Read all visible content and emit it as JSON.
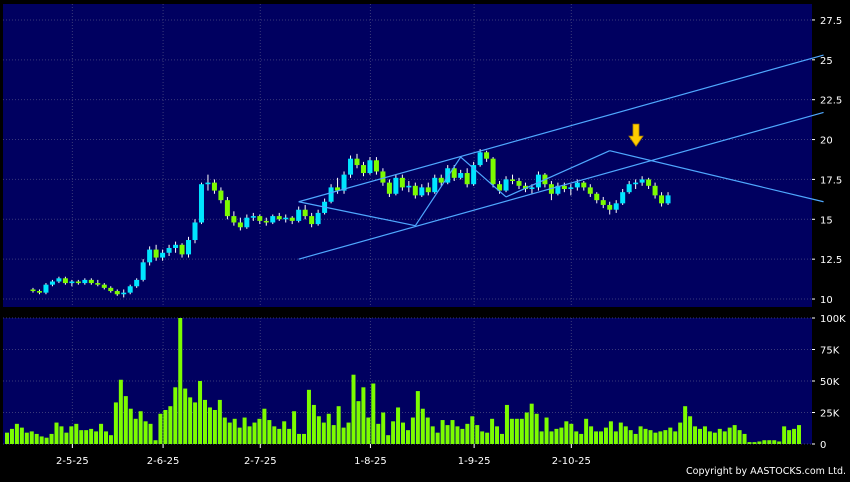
{
  "chart_data": [
    {
      "type": "candlestick",
      "title": "",
      "xlabel": "",
      "ylabel": "",
      "ylim": [
        9.5,
        28.5
      ],
      "y_ticks": [
        "10",
        "12.5",
        "15",
        "17.5",
        "20",
        "22.5",
        "25",
        "27.5"
      ],
      "y_tick_values": [
        10,
        12.5,
        15,
        17.5,
        20,
        22.5,
        25,
        27.5
      ],
      "x_tick_labels": [
        "2-5-25",
        "2-6-25",
        "2-7-25",
        "1-8-25",
        "1-9-25",
        "2-10-25"
      ],
      "x_tick_bar_index": [
        7,
        21,
        36,
        53,
        69,
        84
      ],
      "grid": true,
      "colors": {
        "up": "#00e5ff",
        "down": "#7cfc00",
        "wick": "#ffffff",
        "trendline": "#4fa8ff",
        "arrow": "#ffcc00",
        "background": "#000060"
      },
      "ohlc": [
        [
          10.6,
          10.7,
          10.4,
          10.5
        ],
        [
          10.5,
          10.6,
          10.3,
          10.4
        ],
        [
          10.4,
          11.0,
          10.3,
          10.9
        ],
        [
          10.9,
          11.2,
          10.8,
          11.1
        ],
        [
          11.1,
          11.4,
          11.0,
          11.3
        ],
        [
          11.3,
          11.4,
          10.9,
          11.0
        ],
        [
          11.0,
          11.2,
          10.8,
          11.1
        ],
        [
          11.1,
          11.2,
          10.9,
          11.0
        ],
        [
          11.0,
          11.3,
          10.9,
          11.2
        ],
        [
          11.2,
          11.3,
          10.9,
          11.0
        ],
        [
          11.0,
          11.2,
          10.8,
          10.9
        ],
        [
          10.9,
          11.0,
          10.6,
          10.7
        ],
        [
          10.7,
          10.8,
          10.4,
          10.5
        ],
        [
          10.5,
          10.6,
          10.2,
          10.3
        ],
        [
          10.3,
          10.6,
          10.1,
          10.4
        ],
        [
          10.4,
          10.9,
          10.3,
          10.8
        ],
        [
          10.8,
          11.3,
          10.7,
          11.2
        ],
        [
          11.2,
          12.5,
          11.1,
          12.3
        ],
        [
          12.3,
          13.3,
          12.1,
          13.1
        ],
        [
          13.1,
          13.4,
          12.4,
          12.6
        ],
        [
          12.6,
          13.1,
          12.4,
          12.9
        ],
        [
          12.9,
          13.4,
          12.7,
          13.2
        ],
        [
          13.2,
          13.6,
          12.9,
          13.4
        ],
        [
          13.4,
          13.5,
          12.6,
          12.8
        ],
        [
          12.8,
          13.9,
          12.6,
          13.7
        ],
        [
          13.7,
          15.0,
          13.5,
          14.8
        ],
        [
          14.8,
          17.3,
          14.7,
          17.2
        ],
        [
          17.2,
          17.8,
          16.8,
          17.3
        ],
        [
          17.3,
          17.5,
          16.6,
          16.8
        ],
        [
          16.8,
          17.0,
          16.0,
          16.2
        ],
        [
          16.2,
          16.4,
          15.0,
          15.2
        ],
        [
          15.2,
          15.5,
          14.6,
          14.8
        ],
        [
          14.8,
          15.1,
          14.3,
          14.5
        ],
        [
          14.5,
          15.3,
          14.4,
          15.1
        ],
        [
          15.1,
          15.4,
          14.9,
          15.2
        ],
        [
          15.2,
          15.3,
          14.7,
          14.9
        ],
        [
          14.9,
          15.1,
          14.6,
          14.8
        ],
        [
          14.8,
          15.3,
          14.7,
          15.2
        ],
        [
          15.2,
          15.4,
          14.9,
          15.0
        ],
        [
          15.0,
          15.3,
          14.8,
          15.1
        ],
        [
          15.1,
          15.2,
          14.7,
          14.9
        ],
        [
          14.9,
          15.8,
          14.8,
          15.6
        ],
        [
          15.6,
          15.9,
          15.0,
          15.2
        ],
        [
          15.2,
          15.4,
          14.5,
          14.7
        ],
        [
          14.7,
          15.6,
          14.6,
          15.4
        ],
        [
          15.4,
          16.3,
          15.3,
          16.1
        ],
        [
          16.1,
          17.2,
          16.0,
          17.0
        ],
        [
          17.0,
          17.6,
          16.6,
          16.8
        ],
        [
          16.8,
          18.0,
          16.6,
          17.8
        ],
        [
          17.8,
          19.0,
          17.6,
          18.8
        ],
        [
          18.8,
          19.1,
          18.2,
          18.4
        ],
        [
          18.4,
          18.6,
          17.7,
          17.9
        ],
        [
          17.9,
          18.9,
          17.8,
          18.7
        ],
        [
          18.7,
          18.9,
          17.8,
          18.0
        ],
        [
          18.0,
          18.2,
          17.1,
          17.3
        ],
        [
          17.3,
          17.5,
          16.4,
          16.6
        ],
        [
          16.6,
          17.8,
          16.5,
          17.6
        ],
        [
          17.6,
          17.8,
          16.8,
          17.0
        ],
        [
          17.0,
          17.4,
          16.7,
          17.1
        ],
        [
          17.1,
          17.3,
          16.3,
          16.5
        ],
        [
          16.5,
          17.2,
          16.4,
          17.0
        ],
        [
          17.0,
          17.3,
          16.5,
          16.7
        ],
        [
          16.7,
          17.8,
          16.6,
          17.6
        ],
        [
          17.6,
          17.8,
          17.1,
          17.3
        ],
        [
          17.3,
          18.4,
          17.2,
          18.2
        ],
        [
          18.2,
          18.4,
          17.4,
          17.6
        ],
        [
          17.6,
          18.1,
          17.5,
          17.9
        ],
        [
          17.9,
          18.2,
          17.0,
          17.2
        ],
        [
          17.2,
          18.6,
          17.1,
          18.4
        ],
        [
          18.4,
          19.4,
          18.3,
          19.2
        ],
        [
          19.2,
          19.3,
          18.6,
          18.8
        ],
        [
          18.8,
          18.9,
          17.0,
          17.2
        ],
        [
          17.2,
          17.4,
          16.6,
          16.8
        ],
        [
          16.8,
          17.7,
          16.7,
          17.5
        ],
        [
          17.5,
          17.8,
          17.2,
          17.4
        ],
        [
          17.4,
          17.6,
          16.9,
          17.1
        ],
        [
          17.1,
          17.3,
          16.7,
          16.9
        ],
        [
          16.9,
          17.2,
          16.6,
          17.0
        ],
        [
          17.0,
          18.0,
          16.8,
          17.8
        ],
        [
          17.8,
          17.9,
          17.0,
          17.2
        ],
        [
          17.2,
          17.4,
          16.2,
          16.6
        ],
        [
          16.6,
          17.3,
          16.5,
          17.1
        ],
        [
          17.1,
          17.3,
          16.7,
          16.9
        ],
        [
          16.9,
          17.2,
          16.5,
          17.0
        ],
        [
          17.0,
          17.5,
          16.8,
          17.3
        ],
        [
          17.3,
          17.4,
          16.8,
          17.0
        ],
        [
          17.0,
          17.2,
          16.4,
          16.6
        ],
        [
          16.6,
          16.7,
          16.0,
          16.2
        ],
        [
          16.2,
          16.4,
          15.7,
          15.9
        ],
        [
          15.9,
          16.1,
          15.3,
          15.6
        ],
        [
          15.6,
          16.2,
          15.4,
          16.0
        ],
        [
          16.0,
          16.9,
          15.9,
          16.7
        ],
        [
          16.7,
          17.4,
          16.6,
          17.2
        ],
        [
          17.2,
          17.5,
          16.9,
          17.3
        ],
        [
          17.3,
          17.7,
          17.1,
          17.5
        ],
        [
          17.5,
          17.6,
          16.9,
          17.1
        ],
        [
          17.1,
          17.3,
          16.3,
          16.5
        ],
        [
          16.5,
          16.7,
          15.8,
          16.0
        ],
        [
          16.0,
          16.7,
          15.9,
          16.5
        ]
      ],
      "trendlines": [
        {
          "from": [
            41,
            16.1
          ],
          "to": [
            122,
            25.3
          ]
        },
        {
          "from": [
            41,
            12.5
          ],
          "to": [
            122,
            21.7
          ]
        },
        {
          "from": [
            41,
            16.1
          ],
          "to": [
            59,
            14.6
          ]
        },
        {
          "from": [
            59,
            14.6
          ],
          "to": [
            66,
            18.9
          ]
        },
        {
          "from": [
            66,
            18.9
          ],
          "to": [
            73,
            16.4
          ]
        },
        {
          "from": [
            73,
            16.4
          ],
          "to": [
            89,
            19.3
          ]
        },
        {
          "from": [
            89,
            19.3
          ],
          "to": [
            122,
            16.1
          ]
        }
      ],
      "annotation": {
        "type": "down-arrow",
        "bar_index": 96,
        "value": 19.4
      }
    },
    {
      "type": "bar",
      "title": "",
      "ylim": [
        0,
        100000
      ],
      "y_ticks": [
        "0",
        "25K",
        "50K",
        "75K",
        "100K"
      ],
      "y_tick_values": [
        0,
        25000,
        50000,
        75000,
        100000
      ],
      "color": "#7cfc00",
      "values": [
        9000,
        12000,
        16000,
        13000,
        9000,
        10000,
        8000,
        6000,
        5000,
        8000,
        17000,
        14000,
        9000,
        14000,
        16000,
        11000,
        11000,
        12000,
        10000,
        16000,
        10000,
        7000,
        33000,
        51000,
        38000,
        28000,
        20000,
        26000,
        18000,
        16000,
        3000,
        24000,
        27000,
        30000,
        45000,
        100000,
        44000,
        37000,
        33000,
        50000,
        35000,
        29000,
        27000,
        35000,
        21000,
        17000,
        20000,
        13000,
        21000,
        14000,
        17000,
        20000,
        28000,
        19000,
        14000,
        12000,
        18000,
        12000,
        26000,
        8000,
        8000,
        43000,
        31000,
        22000,
        17000,
        24000,
        15000,
        30000,
        13000,
        17000,
        55000,
        34000,
        45000,
        21000,
        48000,
        16000,
        25000,
        7000,
        18000,
        29000,
        17000,
        11000,
        21000,
        42000,
        28000,
        21000,
        14000,
        9000,
        19000,
        15000,
        19000,
        14000,
        12000,
        16000,
        22000,
        15000,
        10000,
        9000,
        20000,
        14000,
        8000,
        31000,
        20000,
        20000,
        20000,
        25000,
        32000,
        24000,
        10000,
        21000,
        10000,
        12000,
        13000,
        18000,
        16000,
        10000,
        8000,
        20000,
        14000,
        10000,
        10000,
        13000,
        18000,
        10000,
        17000,
        14000,
        11000,
        8000,
        14000,
        12000,
        11000,
        9000,
        10000,
        11000,
        13000,
        10000,
        17000,
        30000,
        22000,
        14000,
        12000,
        14000,
        10000,
        9000,
        12000,
        10000,
        13000,
        15000,
        11000,
        8000,
        1500,
        1500,
        2000,
        3000,
        3000,
        3000,
        2000,
        14000,
        11000,
        12000,
        15000
      ]
    }
  ],
  "footer": {
    "copyright": "Copyright by AASTOCKS.com Ltd."
  }
}
